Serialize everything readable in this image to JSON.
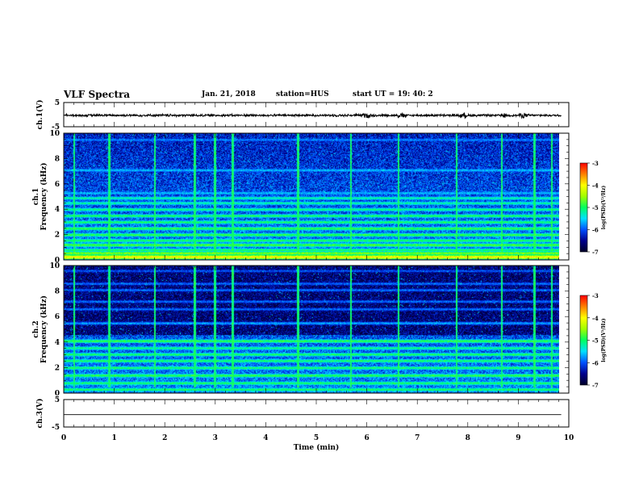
{
  "header": {
    "title": "VLF Spectra",
    "date": "Jan. 21, 2018",
    "station": "station=HUS",
    "start_time": "start UT =  19: 40: 2"
  },
  "colors": {
    "waveform": "#000000",
    "colormap": [
      "#000028",
      "#00008c",
      "#0050ff",
      "#00e0ff",
      "#00ff60",
      "#a0ff00",
      "#ffff00",
      "#ff8000",
      "#ff0000"
    ]
  },
  "chart_data": [
    {
      "type": "line",
      "name": "ch1-waveform",
      "ylabel": "ch.1(V)",
      "ylim": [
        -5,
        5
      ],
      "yticks": [
        "5",
        "-5"
      ],
      "xlim": [
        0,
        10
      ],
      "baseline": -0.3,
      "amplitude": 0.35,
      "note_bursts_min": [
        6.0,
        6.7,
        7.9,
        8.7,
        9.1
      ]
    },
    {
      "type": "heatmap",
      "name": "ch1-spectrogram",
      "ylabel": "ch.1 Frequency (kHz)",
      "ylim": [
        0,
        10
      ],
      "yticks": [
        "0",
        "2",
        "4",
        "6",
        "8",
        "10"
      ],
      "xlim": [
        0,
        9.85
      ],
      "colorbar": {
        "label": "log(PSD)(V²/Hz)",
        "range": [
          -7,
          -3
        ],
        "ticks": [
          "-3",
          "-4",
          "-5",
          "-6",
          "-7"
        ]
      },
      "bands_khz": [
        {
          "f": 0.25,
          "level": -4.0
        },
        {
          "f": 0.55,
          "level": -4.6
        },
        {
          "f": 0.8,
          "level": -5.0
        },
        {
          "f": 1.2,
          "level": -4.8
        },
        {
          "f": 1.55,
          "level": -5.0
        },
        {
          "f": 2.0,
          "level": -4.9
        },
        {
          "f": 2.5,
          "level": -4.9
        },
        {
          "f": 3.0,
          "level": -5.0
        },
        {
          "f": 3.5,
          "level": -5.0
        },
        {
          "f": 4.0,
          "level": -5.1
        },
        {
          "f": 4.5,
          "level": -5.2
        },
        {
          "f": 4.9,
          "level": -5.2
        },
        {
          "f": 5.3,
          "level": -5.6
        },
        {
          "f": 7.1,
          "level": -5.6
        },
        {
          "f": 9.5,
          "level": -5.8
        }
      ],
      "vertical_events_min": [
        0.2,
        0.9,
        1.8,
        2.6,
        3.0,
        3.35,
        4.65,
        5.7,
        6.65,
        7.8,
        8.7,
        9.35,
        9.7
      ]
    },
    {
      "type": "heatmap",
      "name": "ch2-spectrogram",
      "ylabel": "ch.2 Frequency (kHz)",
      "ylim": [
        0,
        10
      ],
      "yticks": [
        "0",
        "2",
        "4",
        "6",
        "8",
        "10"
      ],
      "xlim": [
        0,
        9.85
      ],
      "colorbar": {
        "label": "log(PSD)(V²/Hz)",
        "range": [
          -7,
          -3
        ],
        "ticks": [
          "-3",
          "-4",
          "-5",
          "-6",
          "-7"
        ]
      },
      "bands_khz": [
        {
          "f": 0.3,
          "level": -5.0
        },
        {
          "f": 0.8,
          "level": -5.0
        },
        {
          "f": 1.4,
          "level": -4.9
        },
        {
          "f": 2.0,
          "level": -5.0
        },
        {
          "f": 2.55,
          "level": -5.0
        },
        {
          "f": 3.05,
          "level": -5.0
        },
        {
          "f": 3.55,
          "level": -5.1
        },
        {
          "f": 4.1,
          "level": -4.9
        },
        {
          "f": 5.5,
          "level": -5.7
        },
        {
          "f": 6.6,
          "level": -5.9
        },
        {
          "f": 7.2,
          "level": -5.9
        },
        {
          "f": 8.1,
          "level": -5.9
        },
        {
          "f": 8.6,
          "level": -5.9
        },
        {
          "f": 9.6,
          "level": -6.0
        }
      ],
      "vertical_events_min": [
        0.2,
        0.9,
        1.8,
        2.6,
        3.0,
        3.35,
        4.65,
        5.7,
        6.65,
        7.8,
        8.7,
        9.35,
        9.7
      ]
    },
    {
      "type": "line",
      "name": "ch3-waveform",
      "ylabel": "ch.3(V)",
      "ylim": [
        -5,
        5
      ],
      "yticks": [
        "5",
        "-5"
      ],
      "xlim": [
        0,
        10
      ],
      "baseline": -0.5,
      "amplitude": 0
    }
  ],
  "x_axis": {
    "label": "Time (min)",
    "ticks": [
      "0",
      "1",
      "2",
      "3",
      "4",
      "5",
      "6",
      "7",
      "8",
      "9",
      "10"
    ],
    "range": [
      0,
      10
    ]
  }
}
